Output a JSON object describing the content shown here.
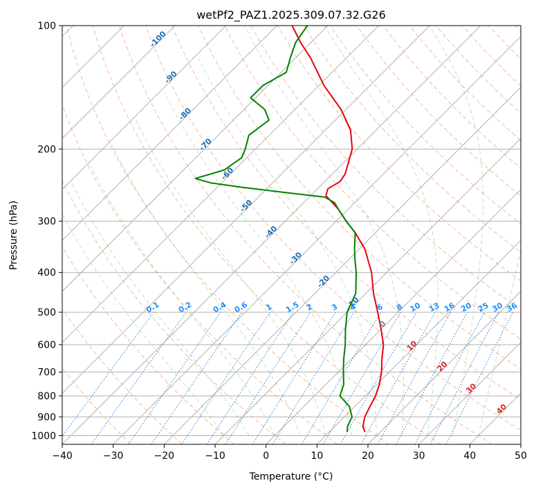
{
  "chart_data": {
    "type": "line",
    "subtype": "skew-T log-P diagram",
    "title": "wetPf2_PAZ1.2025.309.07.32.G26",
    "xlabel": "Temperature (°C)",
    "ylabel": "Pressure (hPa)",
    "xlim": [
      -40,
      50
    ],
    "ylim": [
      1050,
      100
    ],
    "x_ticks": [
      -40,
      -30,
      -20,
      -10,
      0,
      10,
      20,
      30,
      40,
      50
    ],
    "x_tick_labels": [
      "−40",
      "−30",
      "−20",
      "−10",
      "0",
      "10",
      "20",
      "30",
      "40",
      "50"
    ],
    "y_ticks": [
      100,
      200,
      300,
      400,
      500,
      600,
      700,
      800,
      900,
      1000
    ],
    "y_tick_labels": [
      "100",
      "200",
      "300",
      "400",
      "500",
      "600",
      "700",
      "800",
      "900",
      "1000"
    ],
    "skew_deg_per_decade_ln": 45,
    "grid": true,
    "isotherm_labels": [
      {
        "t": -100,
        "label": "-100",
        "p": 109
      },
      {
        "t": -90,
        "label": "-90",
        "p": 135
      },
      {
        "t": -80,
        "label": "-80",
        "p": 166
      },
      {
        "t": -70,
        "label": "-70",
        "p": 197
      },
      {
        "t": -60,
        "label": "-60",
        "p": 232
      },
      {
        "t": -50,
        "label": "-50",
        "p": 278
      },
      {
        "t": -40,
        "label": "-40",
        "p": 322
      },
      {
        "t": -30,
        "label": "-30",
        "p": 373
      },
      {
        "t": -20,
        "label": "-20",
        "p": 425
      },
      {
        "t": -10,
        "label": "-10",
        "p": 480
      },
      {
        "t": 0,
        "label": "0",
        "p": 540
      },
      {
        "t": 10,
        "label": "10",
        "p": 610
      },
      {
        "t": 20,
        "label": "20",
        "p": 685
      },
      {
        "t": 30,
        "label": "30",
        "p": 775
      },
      {
        "t": 40,
        "label": "40",
        "p": 870
      }
    ],
    "mixing_ratio_labels": [
      "0.1",
      "0.2",
      "0.4",
      "0.6",
      "1",
      "1.5",
      "2",
      "3",
      "4",
      "6",
      "8",
      "10",
      "13",
      "16",
      "20",
      "25",
      "30",
      "36"
    ],
    "mixing_ratio_values": [
      0.1,
      0.2,
      0.4,
      0.6,
      1,
      1.5,
      2,
      3,
      4,
      6,
      8,
      10,
      13,
      16,
      20,
      25,
      30,
      36
    ],
    "series": [
      {
        "name": "Temperature",
        "color": "#e8000b",
        "points": [
          {
            "p": 980,
            "t": 17
          },
          {
            "p": 950,
            "t": 15.5
          },
          {
            "p": 900,
            "t": 14
          },
          {
            "p": 850,
            "t": 13
          },
          {
            "p": 800,
            "t": 12
          },
          {
            "p": 750,
            "t": 10.5
          },
          {
            "p": 700,
            "t": 8.5
          },
          {
            "p": 650,
            "t": 6
          },
          {
            "p": 600,
            "t": 3.5
          },
          {
            "p": 550,
            "t": 0
          },
          {
            "p": 500,
            "t": -4
          },
          {
            "p": 450,
            "t": -8.5
          },
          {
            "p": 400,
            "t": -13
          },
          {
            "p": 350,
            "t": -19
          },
          {
            "p": 320,
            "t": -24
          },
          {
            "p": 300,
            "t": -28
          },
          {
            "p": 280,
            "t": -32
          },
          {
            "p": 260,
            "t": -37
          },
          {
            "p": 250,
            "t": -38
          },
          {
            "p": 240,
            "t": -37
          },
          {
            "p": 230,
            "t": -37.5
          },
          {
            "p": 200,
            "t": -41
          },
          {
            "p": 180,
            "t": -45
          },
          {
            "p": 160,
            "t": -51
          },
          {
            "p": 140,
            "t": -59
          },
          {
            "p": 120,
            "t": -67
          },
          {
            "p": 110,
            "t": -72
          },
          {
            "p": 100,
            "t": -77
          }
        ]
      },
      {
        "name": "Dewpoint",
        "color": "#008000",
        "points": [
          {
            "p": 980,
            "t": 13.5
          },
          {
            "p": 950,
            "t": 12.5
          },
          {
            "p": 900,
            "t": 11.5
          },
          {
            "p": 850,
            "t": 9
          },
          {
            "p": 800,
            "t": 5
          },
          {
            "p": 750,
            "t": 3.5
          },
          {
            "p": 700,
            "t": 1
          },
          {
            "p": 650,
            "t": -1.5
          },
          {
            "p": 600,
            "t": -4
          },
          {
            "p": 550,
            "t": -7
          },
          {
            "p": 500,
            "t": -10
          },
          {
            "p": 450,
            "t": -12
          },
          {
            "p": 400,
            "t": -16
          },
          {
            "p": 370,
            "t": -19
          },
          {
            "p": 350,
            "t": -21
          },
          {
            "p": 320,
            "t": -24
          },
          {
            "p": 300,
            "t": -28
          },
          {
            "p": 280,
            "t": -32
          },
          {
            "p": 270,
            "t": -34
          },
          {
            "p": 262,
            "t": -37
          },
          {
            "p": 255,
            "t": -46
          },
          {
            "p": 248,
            "t": -55
          },
          {
            "p": 242,
            "t": -62
          },
          {
            "p": 236,
            "t": -66
          },
          {
            "p": 225,
            "t": -62
          },
          {
            "p": 210,
            "t": -61
          },
          {
            "p": 200,
            "t": -62
          },
          {
            "p": 185,
            "t": -64
          },
          {
            "p": 170,
            "t": -63
          },
          {
            "p": 160,
            "t": -66
          },
          {
            "p": 150,
            "t": -71
          },
          {
            "p": 140,
            "t": -71
          },
          {
            "p": 130,
            "t": -69
          },
          {
            "p": 120,
            "t": -71
          },
          {
            "p": 110,
            "t": -73
          },
          {
            "p": 100,
            "t": -74
          }
        ]
      }
    ]
  }
}
